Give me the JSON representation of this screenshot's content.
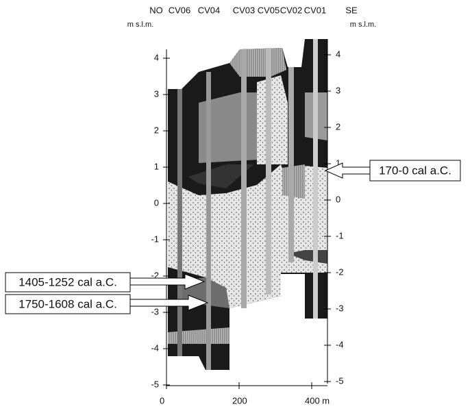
{
  "header": {
    "left_direction": "NO",
    "right_direction": "SE",
    "left_unit": "m s.l.m.",
    "right_unit": "m s.l.m.",
    "cores": [
      "CV06",
      "CV04",
      "CV03",
      "CV05",
      "CV02",
      "CV01"
    ]
  },
  "axes": {
    "left_ticks": [
      4,
      3,
      2,
      1,
      0,
      -1,
      -2,
      -3,
      -4,
      -5
    ],
    "right_ticks": [
      4,
      3,
      2,
      1,
      0,
      -1,
      -2,
      -3,
      -4,
      -5
    ],
    "x_ticks": [
      0,
      200,
      {
        "value": 400,
        "label": "400 m"
      }
    ]
  },
  "annotations": [
    "170-0 cal a.C.",
    "1405-1252 cal a.C.",
    "1750-1608 cal a.C."
  ]
}
